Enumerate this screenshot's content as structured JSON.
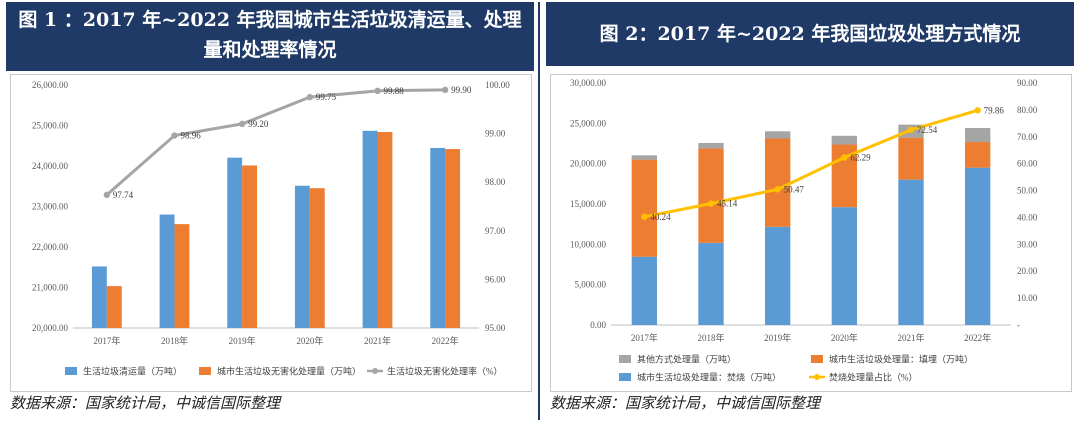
{
  "left": {
    "title": "图 1 ：2017 年~2022 年我国城市生活垃圾清运量、处理量和处理率情况",
    "title_line1": "图 1 ：2017 年~2022 年我国城市生活垃圾清运量、处理",
    "title_line2": "量和处理率情况",
    "source": "数据来源：国家统计局，中诚信国际整理"
  },
  "right": {
    "title": "图 2：2017 年~2022 年我国垃圾处理方式情况",
    "source": "数据来源：国家统计局，中诚信国际整理"
  },
  "colors": {
    "blue": "#5b9bd5",
    "orange": "#ed7d31",
    "gray": "#a5a5a5",
    "yellow": "#ffc000",
    "header": "#1f3a66"
  },
  "chart_data": [
    {
      "type": "bar",
      "title": "图 1 ：2017 年~2022 年我国城市生活垃圾清运量、处理量和处理率情况",
      "categories": [
        "2017年",
        "2018年",
        "2019年",
        "2020年",
        "2021年",
        "2022年"
      ],
      "series": [
        {
          "name": "生活垃圾清运量（万吨）",
          "kind": "bar",
          "axis": "left",
          "color": "#5b9bd5",
          "values": [
            21520,
            22802,
            24206,
            23512,
            24869,
            24445
          ]
        },
        {
          "name": "城市生活垃圾无害化处理量（万吨）",
          "kind": "bar",
          "axis": "left",
          "color": "#ed7d31",
          "values": [
            21034,
            22565,
            24013,
            23452,
            24839,
            24419
          ]
        },
        {
          "name": "生活垃圾无害化处理率（%）",
          "kind": "line",
          "axis": "right",
          "color": "#a5a5a5",
          "values": [
            97.74,
            98.96,
            99.2,
            99.75,
            99.88,
            99.9
          ],
          "labels": [
            "97.74",
            "98.96",
            "99.20",
            "99.75",
            "99.88",
            "99.90"
          ]
        }
      ],
      "ylim_left": [
        20000,
        26000
      ],
      "yticks_left": [
        "20,000.00",
        "21,000.00",
        "22,000.00",
        "23,000.00",
        "24,000.00",
        "25,000.00",
        "26,000.00"
      ],
      "ylim_right": [
        95,
        100
      ],
      "yticks_right": [
        "95.00",
        "96.00",
        "97.00",
        "98.00",
        "99.00",
        "100.00"
      ],
      "legend_position": "bottom"
    },
    {
      "type": "bar",
      "stacked": true,
      "title": "图 2：2017 年~2022 年我国垃圾处理方式情况",
      "categories": [
        "2017年",
        "2018年",
        "2019年",
        "2020年",
        "2021年",
        "2022年"
      ],
      "series": [
        {
          "name": "城市生活垃圾处理量：焚烧（万吨）",
          "kind": "bar",
          "axis": "left",
          "color": "#5b9bd5",
          "values": [
            8463,
            10185,
            12174,
            14608,
            18020,
            19502
          ]
        },
        {
          "name": "城市生活垃圾处理量：填埋（万吨）",
          "kind": "bar",
          "axis": "left",
          "color": "#ed7d31",
          "values": [
            12038,
            11706,
            10948,
            7772,
            5208,
            3178
          ]
        },
        {
          "name": "其他方式处理量（万吨）",
          "kind": "bar",
          "axis": "left",
          "color": "#a5a5a5",
          "values": [
            533,
            674,
            891,
            1072,
            1611,
            1739
          ]
        },
        {
          "name": "焚烧处理量占比（%）",
          "kind": "line",
          "axis": "right",
          "color": "#ffc000",
          "values": [
            40.24,
            45.14,
            50.47,
            62.29,
            72.54,
            79.86
          ],
          "labels": [
            "40.24",
            "45.14",
            "50.47",
            "62.29",
            "72.54",
            "79.86"
          ]
        }
      ],
      "ylim_left": [
        0,
        30000
      ],
      "yticks_left": [
        "0.00",
        "5,000.00",
        "10,000.00",
        "15,000.00",
        "20,000.00",
        "25,000.00",
        "30,000.00"
      ],
      "ylim_right": [
        0,
        90
      ],
      "yticks_right": [
        "-",
        "10.00",
        "20.00",
        "30.00",
        "40.00",
        "50.00",
        "60.00",
        "70.00",
        "80.00",
        "90.00"
      ],
      "legend_position": "bottom"
    }
  ]
}
